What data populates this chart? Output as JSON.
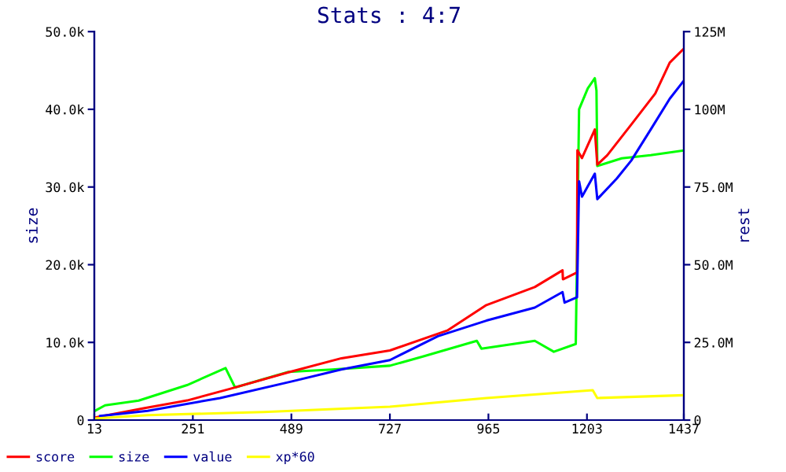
{
  "chart_data": {
    "type": "line",
    "title": "Stats : 4:7",
    "ylabel": "size",
    "y2label": "rest",
    "xlim": [
      13,
      1437
    ],
    "xticks": [
      13,
      251,
      489,
      727,
      965,
      1203,
      1437
    ],
    "ylim": [
      0,
      50000
    ],
    "yticks": [
      0,
      {
        "value": 10000,
        "label": "10.0k"
      },
      {
        "value": 20000,
        "label": "20.0k"
      },
      {
        "value": 30000,
        "label": "30.0k"
      },
      {
        "value": 40000,
        "label": "40.0k"
      },
      {
        "value": 50000,
        "label": "50.0k"
      }
    ],
    "y2lim": [
      0,
      125
    ],
    "y2ticks": [
      0,
      {
        "value": 25,
        "label": "25.0M"
      },
      {
        "value": 50,
        "label": "50.0M"
      },
      {
        "value": 75,
        "label": "75.0M"
      },
      {
        "value": 100,
        "label": "100M"
      },
      {
        "value": 125,
        "label": "125M"
      }
    ],
    "grid": false,
    "legend": "bottom",
    "marker": "none",
    "line_style": "solid",
    "series": [
      {
        "name": "score",
        "color": "#ff0000",
        "axis": "y2",
        "x": [
          15,
          132,
          237,
          342,
          482,
          610,
          727,
          867,
          960,
          1077,
          1144,
          1145,
          1179,
          1180,
          1191,
          1222,
          1228,
          1252,
          1310,
          1368,
          1403,
          1437
        ],
        "values": [
          0.8,
          3.8,
          6.3,
          10.1,
          15.4,
          19.9,
          22.4,
          28.9,
          37.0,
          42.8,
          48.2,
          45.3,
          47.5,
          86.8,
          84.3,
          93.5,
          82.2,
          85.2,
          95.1,
          105.1,
          115,
          119.5
        ]
      },
      {
        "name": "size",
        "color": "#00ff00",
        "x": [
          15,
          39,
          120,
          237,
          330,
          353,
          482,
          587,
          727,
          808,
          937,
          948,
          1077,
          1123,
          1176,
          1184,
          1205,
          1222,
          1226,
          1228,
          1287,
          1357,
          1437
        ],
        "values": [
          1200,
          1900,
          2500,
          4500,
          6700,
          4200,
          6200,
          6500,
          7000,
          8200,
          10200,
          9200,
          10200,
          8800,
          9800,
          40000,
          42700,
          44000,
          42400,
          32700,
          33700,
          34100,
          34700
        ]
      },
      {
        "name": "value",
        "color": "#0000ff",
        "axis": "y2",
        "x": [
          27,
          142,
          317,
          492,
          611,
          727,
          843,
          960,
          1077,
          1144,
          1149,
          1179,
          1184,
          1191,
          1222,
          1228,
          1275,
          1310,
          1357,
          1403,
          1437
        ],
        "values": [
          1.3,
          3.0,
          7.1,
          12.5,
          16.3,
          19.3,
          27.0,
          32.0,
          36.2,
          41.2,
          37.8,
          39.5,
          76.8,
          71.9,
          79.3,
          71.1,
          77.7,
          83.5,
          93.5,
          103.4,
          109.2
        ]
      },
      {
        "name": "xp*60",
        "color": "#ffff00",
        "axis": "y2",
        "x": [
          13,
          142,
          422,
          727,
          960,
          1217,
          1228,
          1437
        ],
        "values": [
          0.5,
          1.6,
          2.6,
          4.3,
          7.1,
          9.6,
          7.1,
          8.0
        ]
      }
    ]
  }
}
